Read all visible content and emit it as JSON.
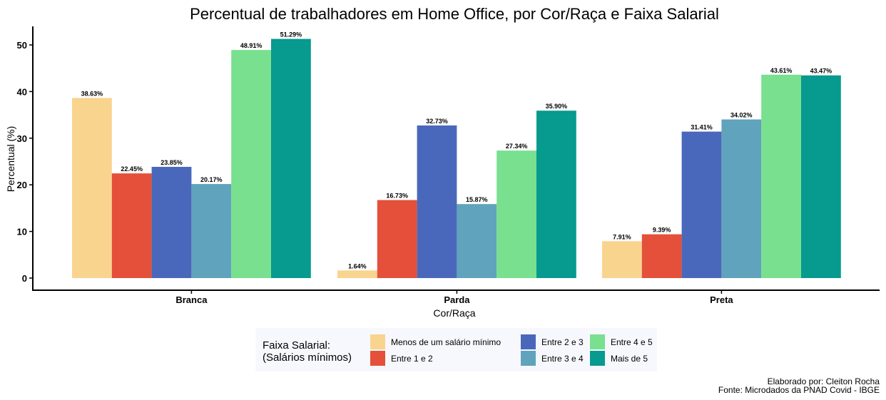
{
  "chart_data": {
    "type": "bar",
    "title": "Percentual de trabalhadores em Home Office, por Cor/Raça e Faixa Salarial",
    "xlabel": "Cor/Raça",
    "ylabel": "Percentual (%)",
    "categories": [
      "Branca",
      "Parda",
      "Preta"
    ],
    "ylim": [
      0,
      54
    ],
    "yticks": [
      0,
      10,
      20,
      30,
      40,
      50
    ],
    "grid": false,
    "legend_position": "bottom",
    "legend_title_line1": "Faixa Salarial:",
    "legend_title_line2": "(Salários mínimos)",
    "series": [
      {
        "name": "Menos de um salário mínimo",
        "color": "#f9d48f",
        "values": [
          38.63,
          1.64,
          7.91
        ],
        "labels": [
          "38.63%",
          "1.64%",
          "7.91%"
        ]
      },
      {
        "name": "Entre 1 e 2",
        "color": "#e4503a",
        "values": [
          22.45,
          16.73,
          9.39
        ],
        "labels": [
          "22.45%",
          "16.73%",
          "9.39%"
        ]
      },
      {
        "name": "Entre 2 e 3",
        "color": "#4a68bb",
        "values": [
          23.85,
          32.73,
          31.41
        ],
        "labels": [
          "23.85%",
          "32.73%",
          "31.41%"
        ]
      },
      {
        "name": "Entre 3 e 4",
        "color": "#60a3bc",
        "values": [
          20.17,
          15.87,
          34.02
        ],
        "labels": [
          "20.17%",
          "15.87%",
          "34.02%"
        ]
      },
      {
        "name": "Entre 4 e 5",
        "color": "#78e08f",
        "values": [
          48.91,
          27.34,
          43.61
        ],
        "labels": [
          "48.91%",
          "27.34%",
          "43.61%"
        ]
      },
      {
        "name": "Mais de 5",
        "color": "#079a8f",
        "values": [
          51.29,
          35.9,
          43.47
        ],
        "labels": [
          "51.29%",
          "35.90%",
          "43.47%"
        ]
      }
    ],
    "caption_line1": "Elaborado por: Cleiton Rocha",
    "caption_line2": "Fonte: Microdados da PNAD Covid - IBGE"
  }
}
